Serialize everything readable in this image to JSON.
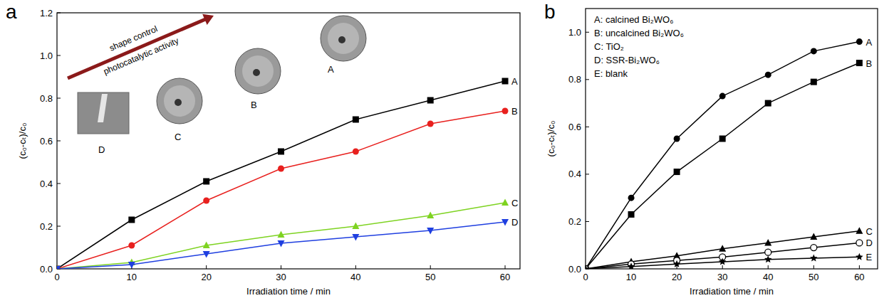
{
  "chart_data": [
    {
      "type": "line",
      "panel": "a",
      "x_label": "Irradiation time / min",
      "y_label": "(c₀-cₜ)/c₀",
      "annotations": [
        "shape control",
        "photocatalytic activity"
      ],
      "x": [
        0,
        10,
        20,
        30,
        40,
        50,
        60
      ],
      "xlim": [
        0,
        62
      ],
      "xticks": [
        0,
        10,
        20,
        30,
        40,
        50,
        60
      ],
      "ylim": [
        0,
        1.2
      ],
      "yticks": [
        {
          "value": 0,
          "label": "0.0"
        },
        0.2,
        0.4,
        0.6,
        0.8,
        {
          "value": 1,
          "label": "1.0"
        },
        1.2
      ],
      "series": [
        {
          "name": "A",
          "color": "#000000",
          "marker": "square",
          "values": [
            0,
            0.23,
            0.41,
            0.55,
            0.7,
            0.79,
            0.88
          ]
        },
        {
          "name": "B",
          "color": "#e8201e",
          "marker": "circle",
          "values": [
            0,
            0.11,
            0.32,
            0.47,
            0.55,
            0.68,
            0.74
          ]
        },
        {
          "name": "C",
          "color": "#7ed321",
          "marker": "triangle-up",
          "values": [
            0,
            0.03,
            0.11,
            0.16,
            0.2,
            0.25,
            0.31
          ]
        },
        {
          "name": "D",
          "color": "#1f3fe0",
          "marker": "triangle-down",
          "values": [
            0,
            0.02,
            0.07,
            0.12,
            0.15,
            0.18,
            0.22
          ]
        }
      ]
    },
    {
      "type": "line",
      "panel": "b",
      "x_label": "Irradiation time / min",
      "y_label": "(c₀-cₜ)/c₀",
      "legend": "top-left",
      "x": [
        0,
        10,
        20,
        30,
        40,
        50,
        60
      ],
      "xlim": [
        0,
        64
      ],
      "xticks": [
        0,
        10,
        20,
        30,
        40,
        50,
        60
      ],
      "ylim": [
        0,
        1.1
      ],
      "yticks": [
        {
          "value": 0,
          "label": "0.0"
        },
        0.2,
        0.4,
        0.6,
        0.8,
        {
          "value": 1,
          "label": "1.0"
        }
      ],
      "series": [
        {
          "name": "A: calcined Bi₂WO₆",
          "label": "A",
          "color": "#000000",
          "marker": "circle",
          "values": [
            0,
            0.3,
            0.55,
            0.73,
            0.82,
            0.92,
            0.96
          ]
        },
        {
          "name": "B: uncalcined Bi₂WO₆",
          "label": "B",
          "color": "#000000",
          "marker": "square",
          "values": [
            0,
            0.23,
            0.41,
            0.55,
            0.7,
            0.79,
            0.87
          ]
        },
        {
          "name": "C: TiO₂",
          "label": "C",
          "color": "#000000",
          "marker": "triangle-up",
          "values": [
            0,
            0.03,
            0.055,
            0.085,
            0.11,
            0.135,
            0.16
          ]
        },
        {
          "name": "D: SSR-Bi₂WO₆",
          "label": "D",
          "color": "#000000",
          "marker": "circle-open",
          "values": [
            0,
            0.02,
            0.035,
            0.05,
            0.07,
            0.09,
            0.11
          ]
        },
        {
          "name": "E: blank",
          "label": "E",
          "color": "#000000",
          "marker": "star",
          "values": [
            0,
            0.01,
            0.02,
            0.03,
            0.04,
            0.045,
            0.05
          ]
        }
      ]
    }
  ]
}
